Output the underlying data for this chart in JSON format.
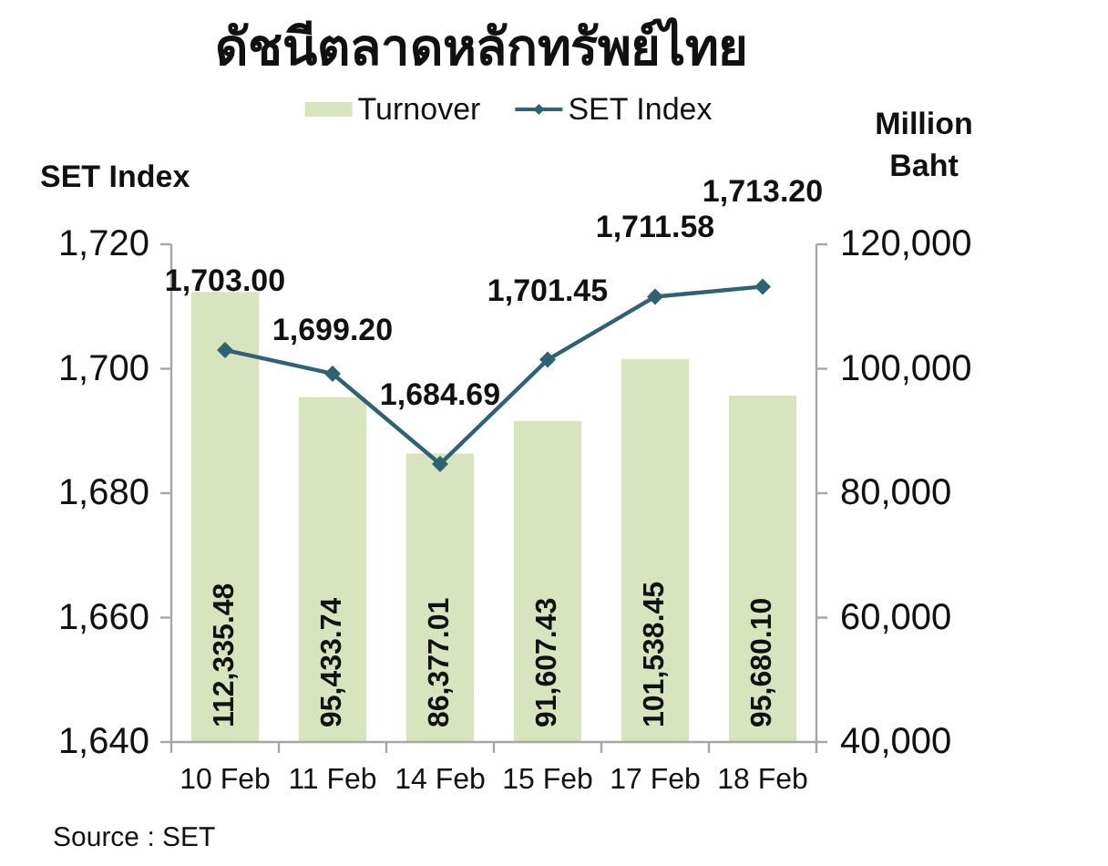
{
  "chart_data": {
    "type": "bar",
    "title": "ดัชนีตลาดหลักทรัพย์ไทย",
    "ylabel": "SET Index",
    "y2label": "Million Baht",
    "categories": [
      "10 Feb",
      "11 Feb",
      "14 Feb",
      "15 Feb",
      "17 Feb",
      "18 Feb"
    ],
    "series": [
      {
        "name": "Turnover",
        "axis": "y2",
        "color": "#d7e4bd",
        "values": [
          112335.48,
          95433.74,
          86377.01,
          91607.43,
          101538.45,
          95680.1
        ],
        "value_labels": [
          "112,335.48",
          "95,433.74",
          "86,377.01",
          "91,607.43",
          "101,538.45",
          "95,680.10"
        ]
      },
      {
        "name": "SET Index",
        "type": "line",
        "axis": "y",
        "color": "#2e6374",
        "marker": "diamond",
        "values": [
          1703.0,
          1699.2,
          1684.69,
          1701.45,
          1711.58,
          1713.2
        ],
        "value_labels": [
          "1,703.00",
          "1,699.20",
          "1,684.69",
          "1,701.45",
          "1,711.58",
          "1,713.20"
        ]
      }
    ],
    "ylim": [
      1640,
      1720
    ],
    "yticks": [
      {
        "value": 1640,
        "label": "1,640"
      },
      {
        "value": 1660,
        "label": "1,660"
      },
      {
        "value": 1680,
        "label": "1,680"
      },
      {
        "value": 1700,
        "label": "1,700"
      },
      {
        "value": 1720,
        "label": "1,720"
      }
    ],
    "y2lim": [
      40000,
      120000
    ],
    "y2ticks": [
      {
        "value": 40000,
        "label": "40,000"
      },
      {
        "value": 60000,
        "label": "60,000"
      },
      {
        "value": 80000,
        "label": "80,000"
      },
      {
        "value": 100000,
        "label": "100,000"
      },
      {
        "value": 120000,
        "label": "120,000"
      }
    ],
    "legend": "top",
    "annotations": [
      "Source : SET"
    ]
  }
}
